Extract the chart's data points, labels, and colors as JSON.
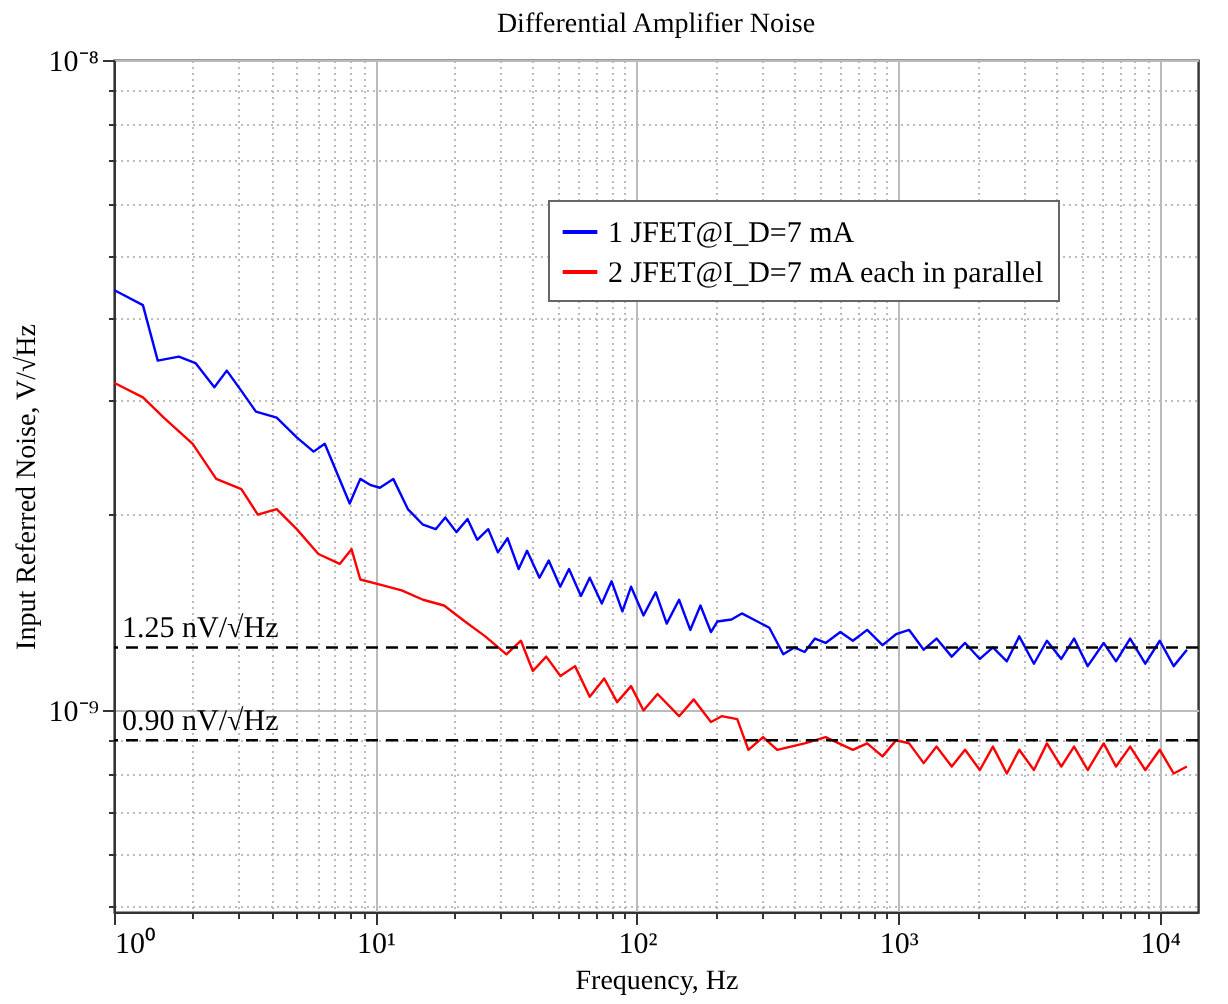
{
  "chart_data": {
    "type": "line",
    "title": "Differential Amplifier Noise",
    "xlabel": "Frequency, Hz",
    "ylabel": "Input Referred Noise, V/√Hz",
    "log": "xy",
    "grid": true,
    "legend": "top right",
    "marker": "none",
    "line_style": "solid",
    "xlim": [
      1,
      14000
    ],
    "ylim": [
      4.9e-10,
      1e-08
    ],
    "xticks": [
      {
        "value": 1,
        "label": "10⁰"
      },
      {
        "value": 2,
        "label": null
      },
      {
        "value": 3,
        "label": null
      },
      {
        "value": 4,
        "label": null
      },
      {
        "value": 5,
        "label": null
      },
      {
        "value": 6,
        "label": null
      },
      {
        "value": 7,
        "label": null
      },
      {
        "value": 8,
        "label": null
      },
      {
        "value": 9,
        "label": null
      },
      {
        "value": 10,
        "label": "10¹"
      },
      {
        "value": 20,
        "label": null
      },
      {
        "value": 30,
        "label": null
      },
      {
        "value": 40,
        "label": null
      },
      {
        "value": 50,
        "label": null
      },
      {
        "value": 60,
        "label": null
      },
      {
        "value": 70,
        "label": null
      },
      {
        "value": 80,
        "label": null
      },
      {
        "value": 90,
        "label": null
      },
      {
        "value": 100,
        "label": "10²"
      },
      {
        "value": 200,
        "label": null
      },
      {
        "value": 300,
        "label": null
      },
      {
        "value": 400,
        "label": null
      },
      {
        "value": 500,
        "label": null
      },
      {
        "value": 600,
        "label": null
      },
      {
        "value": 700,
        "label": null
      },
      {
        "value": 800,
        "label": null
      },
      {
        "value": 900,
        "label": null
      },
      {
        "value": 1000,
        "label": "10³"
      },
      {
        "value": 2000,
        "label": null
      },
      {
        "value": 3000,
        "label": null
      },
      {
        "value": 4000,
        "label": null
      },
      {
        "value": 5000,
        "label": null
      },
      {
        "value": 6000,
        "label": null
      },
      {
        "value": 7000,
        "label": null
      },
      {
        "value": 8000,
        "label": null
      },
      {
        "value": 9000,
        "label": null
      },
      {
        "value": 10000,
        "label": "10⁴"
      }
    ],
    "yticks": [
      {
        "value": 5e-10,
        "label": null
      },
      {
        "value": 6e-10,
        "label": null
      },
      {
        "value": 7e-10,
        "label": null
      },
      {
        "value": 8e-10,
        "label": null
      },
      {
        "value": 9e-10,
        "label": null
      },
      {
        "value": 1e-09,
        "label": "10⁻⁹"
      },
      {
        "value": 2e-09,
        "label": null
      },
      {
        "value": 3e-09,
        "label": null
      },
      {
        "value": 4e-09,
        "label": null
      },
      {
        "value": 5e-09,
        "label": null
      },
      {
        "value": 6e-09,
        "label": null
      },
      {
        "value": 7e-09,
        "label": null
      },
      {
        "value": 8e-09,
        "label": null
      },
      {
        "value": 9e-09,
        "label": null
      },
      {
        "value": 1e-08,
        "label": "10⁻⁸"
      }
    ],
    "ref_lines": [
      {
        "axis": "y",
        "value": 1.25e-09,
        "label": "1.25 nV/√Hz",
        "color": "#000000",
        "line_style": "dashed"
      },
      {
        "axis": "y",
        "value": 9e-10,
        "label": "0.90 nV/√Hz",
        "color": "#000000",
        "line_style": "dashed"
      }
    ],
    "series": [
      {
        "name": "1 JFET@I_D=7 mA",
        "color": "#0000ff",
        "x": [
          1,
          1.29,
          1.47,
          1.77,
          2.05,
          2.42,
          2.7,
          3.07,
          3.49,
          4.19,
          5.0,
          5.8,
          6.4,
          7.97,
          8.75,
          9.6,
          10.4,
          11.7,
          13.3,
          15.2,
          17,
          18.5,
          20.4,
          22.5,
          24.5,
          27,
          29.4,
          32,
          35.3,
          38,
          42.4,
          46,
          50.9,
          55,
          61.1,
          66,
          73.4,
          80,
          88,
          95,
          106,
          118,
          130,
          145,
          160,
          175,
          192,
          203,
          230,
          252,
          289,
          321,
          363,
          400,
          438,
          480,
          527,
          600,
          670,
          760,
          870,
          980,
          1100,
          1250,
          1400,
          1600,
          1800,
          2050,
          2300,
          2600,
          2900,
          3300,
          3700,
          4200,
          4700,
          5300,
          6100,
          6800,
          7700,
          8800,
          10000,
          11300,
          12700
        ],
        "values": [
          4.43e-09,
          4.2e-09,
          3.45e-09,
          3.5e-09,
          3.42e-09,
          3.14e-09,
          3.33e-09,
          3.1e-09,
          2.88e-09,
          2.82e-09,
          2.63e-09,
          2.5e-09,
          2.57e-09,
          2.08e-09,
          2.27e-09,
          2.22e-09,
          2.2e-09,
          2.27e-09,
          2.04e-09,
          1.93e-09,
          1.9e-09,
          1.98e-09,
          1.88e-09,
          1.97e-09,
          1.83e-09,
          1.9e-09,
          1.75e-09,
          1.84e-09,
          1.65e-09,
          1.76e-09,
          1.6e-09,
          1.7e-09,
          1.55e-09,
          1.65e-09,
          1.5e-09,
          1.6e-09,
          1.46e-09,
          1.58e-09,
          1.42e-09,
          1.55e-09,
          1.4e-09,
          1.52e-09,
          1.36e-09,
          1.48e-09,
          1.33e-09,
          1.45e-09,
          1.32e-09,
          1.37e-09,
          1.38e-09,
          1.41e-09,
          1.37e-09,
          1.34e-09,
          1.22e-09,
          1.25e-09,
          1.23e-09,
          1.29e-09,
          1.27e-09,
          1.32e-09,
          1.28e-09,
          1.33e-09,
          1.26e-09,
          1.31e-09,
          1.33e-09,
          1.24e-09,
          1.29e-09,
          1.21e-09,
          1.27e-09,
          1.2e-09,
          1.25e-09,
          1.19e-09,
          1.3e-09,
          1.18e-09,
          1.28e-09,
          1.2e-09,
          1.29e-09,
          1.17e-09,
          1.27e-09,
          1.19e-09,
          1.29e-09,
          1.18e-09,
          1.28e-09,
          1.17e-09,
          1.24e-09
        ]
      },
      {
        "name": "2 JFET@I_D=7 mA each in parallel",
        "color": "#ff0000",
        "x": [
          1,
          1.29,
          1.55,
          2.0,
          2.46,
          3.07,
          3.55,
          4.19,
          5.0,
          6.05,
          7.3,
          8.1,
          8.75,
          10.5,
          12.6,
          15.2,
          18.3,
          22,
          26.3,
          31.7,
          36,
          40,
          45,
          51,
          58,
          66,
          75,
          84,
          95,
          106,
          120,
          145,
          165,
          192,
          211,
          242,
          267,
          304,
          344,
          438,
          527,
          670,
          760,
          870,
          980,
          1100,
          1250,
          1400,
          1600,
          1800,
          2050,
          2300,
          2600,
          2900,
          3300,
          3700,
          4200,
          4700,
          5300,
          6100,
          6800,
          7700,
          8800,
          10000,
          11300,
          12700
        ],
        "values": [
          3.19e-09,
          3.03e-09,
          2.82e-09,
          2.57e-09,
          2.27e-09,
          2.19e-09,
          2e-09,
          2.04e-09,
          1.9e-09,
          1.74e-09,
          1.68e-09,
          1.77e-09,
          1.59e-09,
          1.56e-09,
          1.53e-09,
          1.48e-09,
          1.45e-09,
          1.37e-09,
          1.3e-09,
          1.22e-09,
          1.28e-09,
          1.15e-09,
          1.21e-09,
          1.13e-09,
          1.17e-09,
          1.05e-09,
          1.12e-09,
          1.03e-09,
          1.09e-09,
          1e-09,
          1.06e-09,
          9.8e-10,
          1.04e-09,
          9.6e-10,
          9.8e-10,
          9.7e-10,
          8.7e-10,
          9.1e-10,
          8.7e-10,
          8.9e-10,
          9.1e-10,
          8.7e-10,
          8.9e-10,
          8.5e-10,
          9e-10,
          8.9e-10,
          8.3e-10,
          8.8e-10,
          8.2e-10,
          8.7e-10,
          8.1e-10,
          8.8e-10,
          8e-10,
          8.7e-10,
          8.1e-10,
          8.9e-10,
          8.2e-10,
          8.8e-10,
          8.1e-10,
          8.9e-10,
          8.2e-10,
          8.8e-10,
          8.1e-10,
          8.7e-10,
          8e-10,
          8.2e-10
        ]
      }
    ]
  }
}
